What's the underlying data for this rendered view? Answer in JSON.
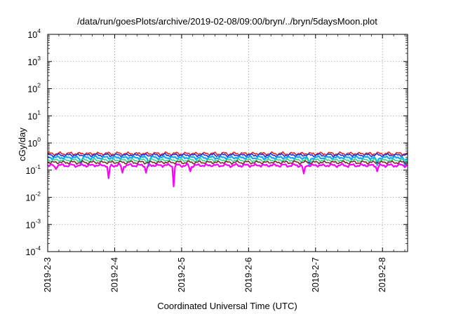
{
  "chart_data": {
    "type": "line",
    "title": "/data/run/goesPlots/archive/2019-02-08/09:00/bryn/../bryn/5daysMoon.plot",
    "xlabel": "Coordinated Universal Time (UTC)",
    "ylabel": "cGy/day",
    "yscale": "log",
    "ylim": [
      0.0001,
      10000
    ],
    "y_ticks": [
      {
        "base": "10",
        "exp": "-4",
        "value": 0.0001
      },
      {
        "base": "10",
        "exp": "-3",
        "value": 0.001
      },
      {
        "base": "10",
        "exp": "-2",
        "value": 0.01
      },
      {
        "base": "10",
        "exp": "-1",
        "value": 0.1
      },
      {
        "base": "10",
        "exp": "0",
        "value": 1
      },
      {
        "base": "10",
        "exp": "1",
        "value": 10
      },
      {
        "base": "10",
        "exp": "2",
        "value": 100
      },
      {
        "base": "10",
        "exp": "3",
        "value": 1000
      },
      {
        "base": "10",
        "exp": "4",
        "value": 10000
      }
    ],
    "xlim": [
      "2019-02-03",
      "2019-02-08T09:00"
    ],
    "x_ticks": [
      "2019-2-3",
      "2019-2-4",
      "2019-2-5",
      "2019-2-6",
      "2019-2-7",
      "2019-2-8"
    ],
    "grid": true,
    "series": [
      {
        "color": "#e8221c",
        "base": 0.42,
        "dips": []
      },
      {
        "color": "#1f2fe0",
        "base": 0.37,
        "dips": []
      },
      {
        "color": "#12a8ff",
        "base": 0.3,
        "dips": [
          [
            "2019-02-03T12:00",
            0.15
          ],
          [
            "2019-02-04T12:00",
            0.14
          ],
          [
            "2019-02-06T22:00",
            0.15
          ],
          [
            "2019-02-07T22:00",
            0.15
          ],
          [
            "2019-02-08T08:00",
            0.14
          ]
        ]
      },
      {
        "color": "#2ddc8c",
        "base": 0.24,
        "dips": []
      },
      {
        "color": "#7a2b2b",
        "base": 0.2,
        "dips": []
      },
      {
        "color": "#ff00ff",
        "base": 0.155,
        "dips": [
          [
            "2019-02-03T03:00",
            0.11
          ],
          [
            "2019-02-03T22:00",
            0.05
          ],
          [
            "2019-02-04T03:00",
            0.08
          ],
          [
            "2019-02-04T11:00",
            0.08
          ],
          [
            "2019-02-04T21:00",
            0.025
          ],
          [
            "2019-02-05T03:00",
            0.09
          ],
          [
            "2019-02-06T20:00",
            0.075
          ],
          [
            "2019-02-07T22:00",
            0.09
          ]
        ]
      }
    ]
  }
}
